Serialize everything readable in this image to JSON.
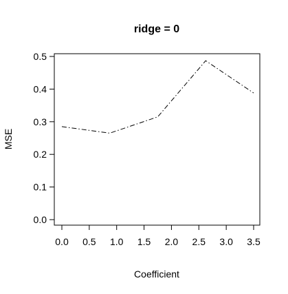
{
  "chart_data": {
    "type": "line",
    "title": "ridge = 0",
    "xlabel": "Coefficient",
    "ylabel": "MSE",
    "xlim": [
      0,
      3.5
    ],
    "ylim": [
      0,
      0.5
    ],
    "xticks": [
      0,
      0.5,
      1,
      1.5,
      2,
      2.5,
      3,
      3.5
    ],
    "xtick_labels": [
      "0.0",
      "0.5",
      "1.0",
      "1.5",
      "2.0",
      "2.5",
      "3.0",
      "3.5"
    ],
    "yticks": [
      0,
      0.1,
      0.2,
      0.3,
      0.4,
      0.5
    ],
    "ytick_labels": [
      "0.0",
      "0.1",
      "0.2",
      "0.3",
      "0.4",
      "0.5"
    ],
    "grid": false,
    "line_style": "dash-dot",
    "line_color": "#000000",
    "series": [
      {
        "x": [
          0,
          0.875,
          1.75,
          2.625,
          3.5
        ],
        "y": [
          0.285,
          0.265,
          0.315,
          0.487,
          0.388
        ]
      }
    ]
  }
}
